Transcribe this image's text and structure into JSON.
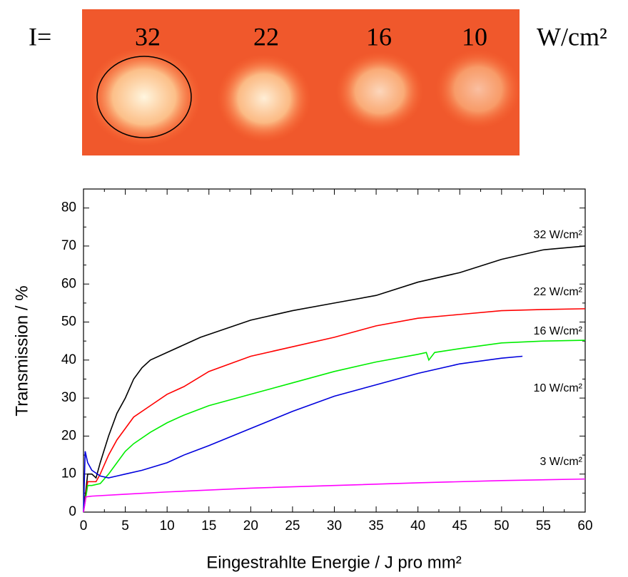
{
  "photo": {
    "prefix": "I=",
    "labels": [
      "32",
      "22",
      "16",
      "10"
    ],
    "unit": "W/cm²"
  },
  "chart_data": {
    "type": "line",
    "xlabel": "Eingestrahlte Energie / J pro mm²",
    "ylabel": "Transmission / %",
    "xlim": [
      0,
      60
    ],
    "ylim": [
      0,
      85
    ],
    "xticks": [
      0,
      5,
      10,
      15,
      20,
      25,
      30,
      35,
      40,
      45,
      50,
      55,
      60
    ],
    "yticks": [
      0,
      10,
      20,
      30,
      40,
      50,
      60,
      70,
      80
    ],
    "series": [
      {
        "name": "32 W/cm²",
        "color": "#000000",
        "x": [
          0,
          0.5,
          1,
          1.5,
          2,
          3,
          4,
          5,
          6,
          7,
          8,
          10,
          12,
          14,
          16,
          18,
          20,
          25,
          30,
          35,
          40,
          45,
          50,
          55,
          60
        ],
        "values": [
          0,
          10,
          10,
          9,
          13,
          20,
          26,
          30,
          35,
          38,
          40,
          42,
          44,
          46,
          47.5,
          49,
          50.5,
          53,
          55,
          57,
          60.5,
          63,
          66.5,
          69,
          70
        ]
      },
      {
        "name": "22 W/cm²",
        "color": "#ff0000",
        "x": [
          0,
          0.5,
          1,
          1.5,
          2,
          3,
          4,
          5,
          6,
          8,
          10,
          12,
          15,
          20,
          25,
          30,
          35,
          40,
          45,
          50,
          55,
          60
        ],
        "values": [
          0,
          8,
          8,
          8,
          10,
          15,
          19,
          22,
          25,
          28,
          31,
          33,
          37,
          41,
          43.5,
          46,
          49,
          51,
          52,
          53,
          53.3,
          53.5
        ]
      },
      {
        "name": "16 W/cm²",
        "color": "#00ee00",
        "x": [
          0,
          0.5,
          1,
          2,
          3,
          4,
          5,
          6,
          8,
          10,
          12,
          15,
          20,
          25,
          30,
          35,
          40,
          41,
          41.3,
          42,
          45,
          50,
          55,
          60
        ],
        "values": [
          0,
          7,
          7,
          7.5,
          10,
          13,
          16,
          18,
          21,
          23.5,
          25.5,
          28,
          31,
          34,
          37,
          39.5,
          41.5,
          42,
          40,
          42,
          43,
          44.5,
          45,
          45.2
        ]
      },
      {
        "name": "10 W/cm²",
        "color": "#0000dd",
        "x": [
          0,
          0.2,
          0.5,
          1,
          2,
          3,
          4,
          5,
          7,
          10,
          12,
          15,
          20,
          25,
          30,
          35,
          40,
          45,
          50,
          52.5
        ],
        "values": [
          0,
          16,
          13,
          11,
          9.5,
          9,
          9.5,
          10,
          11,
          13,
          15,
          17.5,
          22,
          26.5,
          30.5,
          33.5,
          36.5,
          39,
          40.5,
          41
        ]
      },
      {
        "name": "3 W/cm²",
        "color": "#ff00ff",
        "x": [
          0,
          0.3,
          1,
          5,
          10,
          20,
          30,
          40,
          50,
          60
        ],
        "values": [
          0,
          4,
          4.2,
          4.7,
          5.3,
          6.3,
          7,
          7.7,
          8.3,
          8.7
        ]
      }
    ]
  }
}
